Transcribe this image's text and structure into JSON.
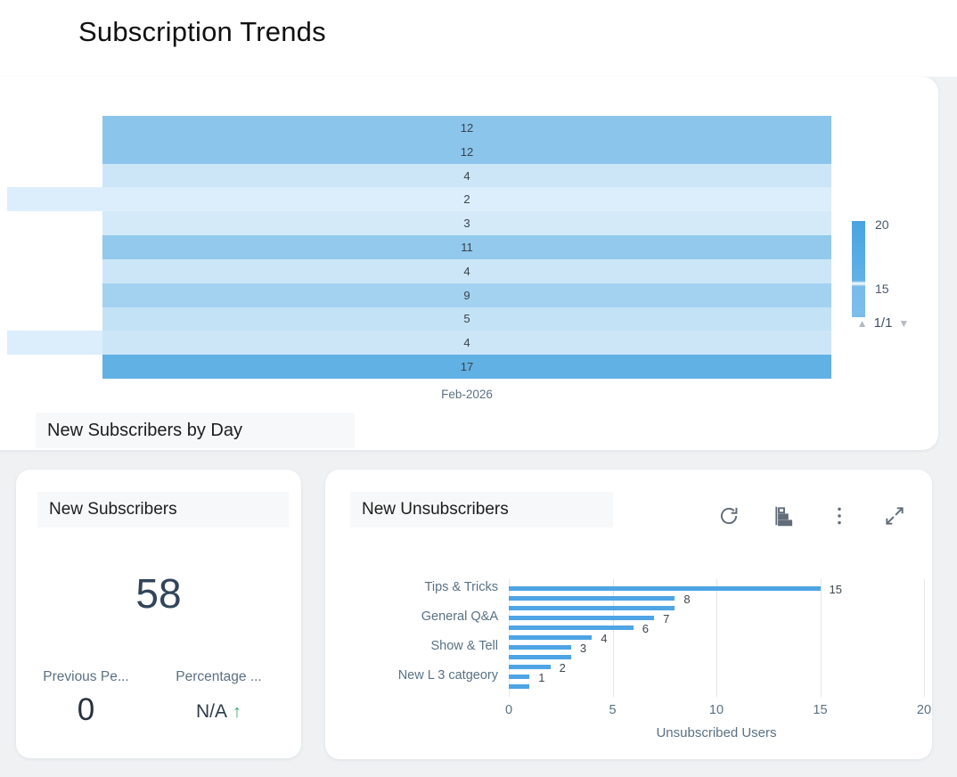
{
  "page_title": "Subscription Trends",
  "colors": {
    "heat_low": "#dceefb",
    "heat_high": "#62b1e4",
    "bar_blue": "#4ea4e4",
    "positive_green": "#2fae6e",
    "axis_text": "#5a7184"
  },
  "heatmap_card": {
    "title": "New Subscribers by Day",
    "x_axis_label": "Feb-2026",
    "values": [
      12,
      12,
      4,
      2,
      3,
      11,
      4,
      9,
      5,
      4,
      17
    ],
    "partial_left_cell_rows": [
      3,
      9
    ],
    "legend": {
      "top_label": "20",
      "bottom_label": "15",
      "page": "1/1",
      "prev_icon": "▲",
      "next_icon": "▼"
    }
  },
  "kpi_card": {
    "title": "New Subscribers",
    "value": "58",
    "metrics": [
      {
        "label": "Previous Pe...",
        "value": "0",
        "trend": null
      },
      {
        "label": "Percentage ...",
        "value": "N/A",
        "trend": "up"
      }
    ],
    "trend_up_glyph": "↑"
  },
  "bar_card": {
    "title": "New Unsubscribers",
    "toolbar_icons": [
      "refresh",
      "chart-type",
      "more-options",
      "expand"
    ],
    "xlabel": "Unsubscribed Users",
    "ticks": [
      0,
      5,
      10,
      15,
      20
    ],
    "xlim": [
      0,
      20
    ],
    "bars": [
      {
        "category": "Tips & Tricks",
        "value": 15,
        "show_label": true
      },
      {
        "category": "",
        "value": 8,
        "show_label": true
      },
      {
        "category": "",
        "value": 8,
        "show_label": false
      },
      {
        "category": "General Q&A",
        "value": 7,
        "show_label": true
      },
      {
        "category": "",
        "value": 6,
        "show_label": true
      },
      {
        "category": "",
        "value": 4,
        "show_label": true
      },
      {
        "category": "Show & Tell",
        "value": 3,
        "show_label": true
      },
      {
        "category": "",
        "value": 3,
        "show_label": false
      },
      {
        "category": "",
        "value": 2,
        "show_label": true
      },
      {
        "category": "New L 3 catgeory",
        "value": 1,
        "show_label": true
      },
      {
        "category": "",
        "value": 1,
        "show_label": false
      }
    ]
  },
  "chart_data": [
    {
      "type": "heatmap",
      "title": "New Subscribers by Day",
      "x_categories": [
        "Feb-2026"
      ],
      "values": [
        [
          12
        ],
        [
          12
        ],
        [
          4
        ],
        [
          2
        ],
        [
          3
        ],
        [
          11
        ],
        [
          4
        ],
        [
          9
        ],
        [
          5
        ],
        [
          4
        ],
        [
          17
        ]
      ],
      "row_labels_visible": false,
      "colorscale": [
        "#dceefb",
        "#62b1e4"
      ],
      "legend_labels": [
        20,
        15
      ],
      "legend_position": "right"
    },
    {
      "type": "bar",
      "orientation": "horizontal",
      "title": "New Unsubscribers",
      "categories": [
        "Tips & Tricks",
        "",
        "",
        "General Q&A",
        "",
        "",
        "Show & Tell",
        "",
        "",
        "New L 3 catgeory",
        ""
      ],
      "values": [
        15,
        8,
        8,
        7,
        6,
        4,
        3,
        3,
        2,
        1,
        1
      ],
      "xlabel": "Unsubscribed Users",
      "xlim": [
        0,
        20
      ],
      "ticks": [
        0,
        5,
        10,
        15,
        20
      ],
      "grid": true,
      "legend_position": "none"
    }
  ]
}
